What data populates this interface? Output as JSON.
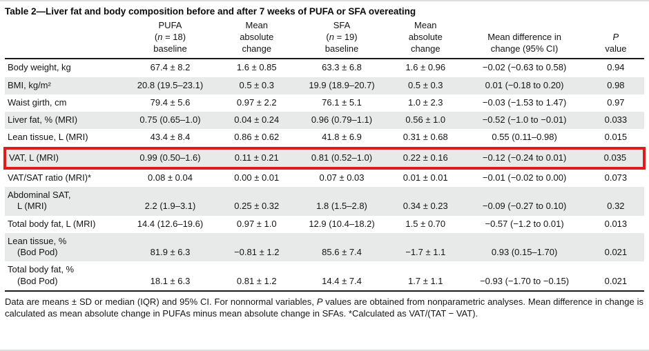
{
  "title": "Table 2—Liver fat and body composition before and after 7 weeks of PUFA or SFA overeating",
  "colors": {
    "highlight_border": "#e01b1b",
    "stripe": "#e8eaea"
  },
  "table": {
    "header": {
      "columns": [
        {
          "lines": [
            "PUFA",
            "(n = 18)",
            "baseline"
          ]
        },
        {
          "lines": [
            "Mean",
            "absolute",
            "change"
          ]
        },
        {
          "lines": [
            "SFA",
            "(n = 19)",
            "baseline"
          ]
        },
        {
          "lines": [
            "Mean",
            "absolute",
            "change"
          ]
        },
        {
          "lines": [
            "Mean difference in",
            "change (95% CI)"
          ]
        },
        {
          "lines": [
            "P",
            "value"
          ]
        }
      ]
    },
    "rows": [
      {
        "label": "Body weight, kg",
        "label2": "",
        "values": [
          "67.4 ± 8.2",
          "1.6 ± 0.85",
          "63.3 ± 6.8",
          "1.6 ± 0.96",
          "−0.02 (−0.63 to 0.58)",
          "0.94"
        ],
        "striped": false,
        "highlight": false
      },
      {
        "label": "BMI, kg/m²",
        "label2": "",
        "values": [
          "20.8 (19.5–23.1)",
          "0.5 ± 0.3",
          "19.9 (18.9–20.7)",
          "0.5 ± 0.3",
          "0.01 (−0.18 to 0.20)",
          "0.98"
        ],
        "striped": true,
        "highlight": false
      },
      {
        "label": "Waist girth, cm",
        "label2": "",
        "values": [
          "79.4 ± 5.6",
          "0.97 ± 2.2",
          "76.1 ± 5.1",
          "1.0 ± 2.3",
          "−0.03 (−1.53 to 1.47)",
          "0.97"
        ],
        "striped": false,
        "highlight": false
      },
      {
        "label": "Liver fat, % (MRI)",
        "label2": "",
        "values": [
          "0.75 (0.65–1.0)",
          "0.04 ± 0.24",
          "0.96 (0.79–1.1)",
          "0.56 ± 1.0",
          "−0.52 (−1.0 to −0.01)",
          "0.033"
        ],
        "striped": true,
        "highlight": false
      },
      {
        "label": "Lean tissue, L (MRI)",
        "label2": "",
        "values": [
          "43.4 ± 8.4",
          "0.86 ± 0.62",
          "41.8 ± 6.9",
          "0.31 ± 0.68",
          "0.55 (0.11–0.98)",
          "0.015"
        ],
        "striped": false,
        "highlight": false
      },
      {
        "label": "VAT, L (MRI)",
        "label2": "",
        "values": [
          "0.99 (0.50–1.6)",
          "0.11 ± 0.21",
          "0.81 (0.52–1.0)",
          "0.22 ± 0.16",
          "−0.12 (−0.24 to 0.01)",
          "0.035"
        ],
        "striped": true,
        "highlight": true
      },
      {
        "label": "VAT/SAT ratio (MRI)*",
        "label2": "",
        "values": [
          "0.08 ± 0.04",
          "0.00 ± 0.01",
          "0.07 ± 0.03",
          "0.01 ± 0.01",
          "−0.01 (−0.02 to 0.00)",
          "0.073"
        ],
        "striped": false,
        "highlight": false
      },
      {
        "label": "Abdominal SAT,",
        "label2": "L (MRI)",
        "values": [
          "2.2 (1.9–3.1)",
          "0.25 ± 0.32",
          "1.8 (1.5–2.8)",
          "0.34 ± 0.23",
          "−0.09 (−0.27 to 0.10)",
          "0.32"
        ],
        "striped": true,
        "highlight": false
      },
      {
        "label": "Total body fat, L (MRI)",
        "label2": "",
        "values": [
          "14.4 (12.6–19.6)",
          "0.97 ± 1.0",
          "12.9 (10.4–18.2)",
          "1.5 ± 0.70",
          "−0.57 (−1.2 to 0.01)",
          "0.013"
        ],
        "striped": false,
        "highlight": false
      },
      {
        "label": "Lean tissue, %",
        "label2": "(Bod Pod)",
        "values": [
          "81.9 ± 6.3",
          "−0.81 ± 1.2",
          "85.6 ± 7.4",
          "−1.7 ± 1.1",
          "0.93 (0.15–1.70)",
          "0.021"
        ],
        "striped": true,
        "highlight": false
      },
      {
        "label": "Total body fat, %",
        "label2": "(Bod Pod)",
        "values": [
          "18.1 ± 6.3",
          "0.81 ± 1.2",
          "14.4 ± 7.4",
          "1.7 ± 1.1",
          "−0.93 (−1.70 to −0.15)",
          "0.021"
        ],
        "striped": false,
        "highlight": false
      }
    ],
    "footnote": "Data are means ± SD or median (IQR) and 95% CI. For nonnormal variables, P values are obtained from nonparametric analyses. Mean difference in change is calculated as mean absolute change in PUFAs minus mean absolute change in SFAs. *Calculated as VAT/(TAT − VAT)."
  }
}
